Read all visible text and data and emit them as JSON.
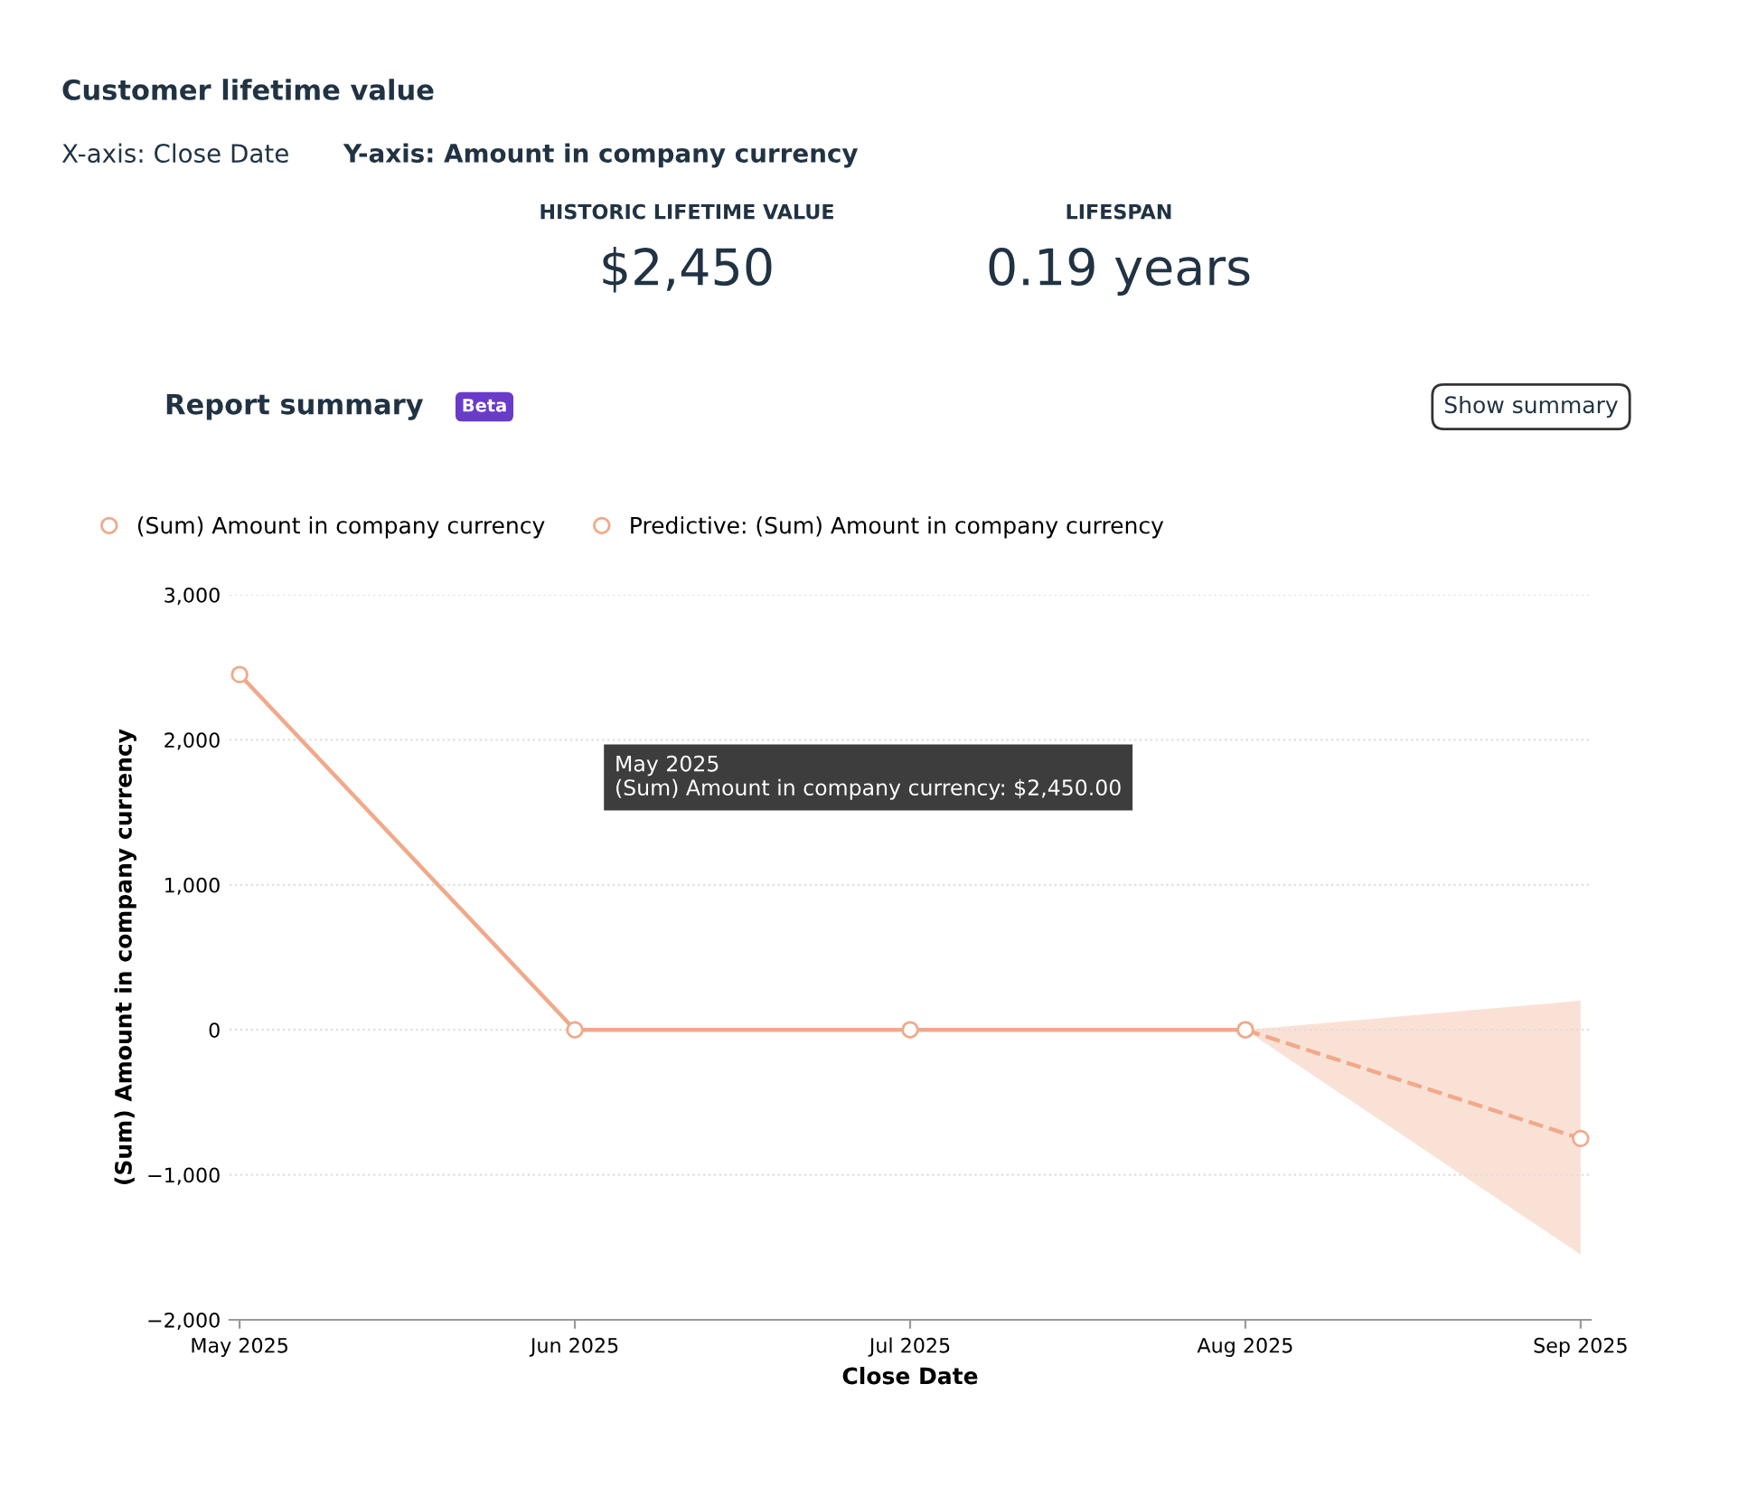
{
  "chart_data": {
    "type": "line",
    "title": "Customer lifetime value",
    "xlabel": "Close Date",
    "ylabel": "(Sum) Amount in company currency",
    "categories": [
      "May 2025",
      "Jun 2025",
      "Jul 2025",
      "Aug 2025",
      "Sep 2025"
    ],
    "series": [
      {
        "name": "(Sum) Amount in company currency",
        "color": "#f0a98a",
        "values": [
          2450,
          0,
          0,
          0,
          null
        ],
        "line_style": "solid"
      },
      {
        "name": "Predictive: (Sum) Amount in company currency",
        "color": "#f0a98a",
        "values": [
          null,
          null,
          null,
          0,
          -750
        ],
        "lower": [
          null,
          null,
          null,
          0,
          -1550
        ],
        "upper": [
          null,
          null,
          null,
          0,
          200
        ],
        "line_style": "dashed"
      }
    ],
    "ylim": [
      -2000,
      3000
    ],
    "yticks": [
      {
        "value": -2000,
        "label": "−2,000"
      },
      {
        "value": -1000,
        "label": "−1,000"
      },
      {
        "value": 0,
        "label": "0"
      },
      {
        "value": 1000,
        "label": "1,000"
      },
      {
        "value": 2000,
        "label": "2,000"
      },
      {
        "value": 3000,
        "label": "3,000"
      }
    ],
    "grid": "y",
    "legend": "top left",
    "marker": "circle",
    "annotations": [
      "X-axis: Close Date",
      "Y-axis: Amount in company currency",
      "HISTORIC LIFETIME VALUE",
      "$2,450",
      "LIFESPAN",
      "0.19 years",
      "Report summary",
      "Beta",
      "Show summary",
      "May 2025\n(Sum) Amount in company currency: $2,450.00"
    ]
  }
}
